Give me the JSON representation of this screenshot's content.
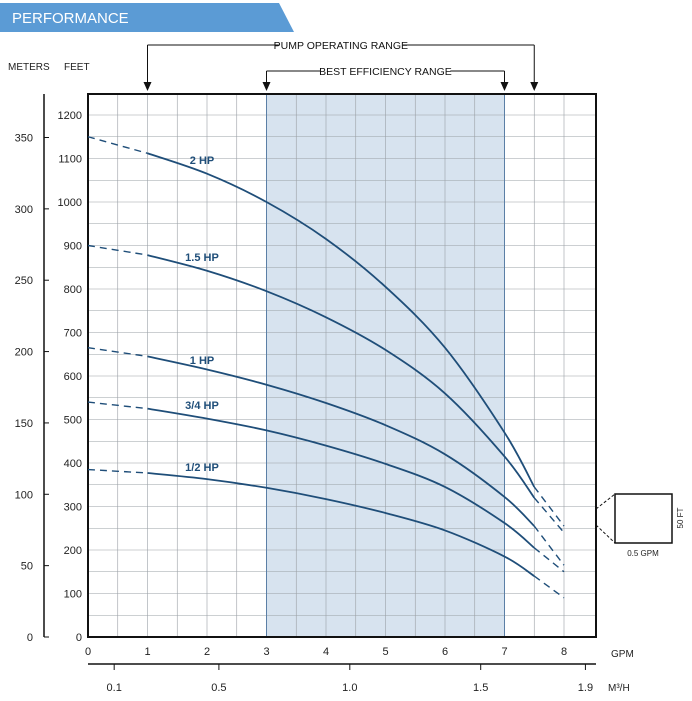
{
  "header": {
    "title": "PERFORMANCE"
  },
  "chart_data": {
    "type": "line",
    "xlabel": "GPM",
    "x2label": "M³/H",
    "ylabel_left": "METERS",
    "ylabel_right": "FEET",
    "xlim": [
      0,
      8.5
    ],
    "ylim_feet": [
      0,
      1200
    ],
    "ylim_meters": [
      0,
      365.76
    ],
    "x_ticks": [
      "0",
      "1",
      "2",
      "3",
      "4",
      "5",
      "6",
      "7",
      "8"
    ],
    "x2_ticks": [
      {
        "gpm": 0.44,
        "label": "0.1"
      },
      {
        "gpm": 2.2,
        "label": "0.5"
      },
      {
        "gpm": 4.4,
        "label": "1.0"
      },
      {
        "gpm": 6.6,
        "label": "1.5"
      },
      {
        "gpm": 8.36,
        "label": "1.9"
      }
    ],
    "y_feet_ticks": [
      "0",
      "100",
      "200",
      "300",
      "400",
      "500",
      "600",
      "700",
      "800",
      "900",
      "1000",
      "1100",
      "1200"
    ],
    "y_meter_ticks": [
      "0",
      "50",
      "100",
      "150",
      "200",
      "250",
      "300",
      "350"
    ],
    "grid": true,
    "ranges": {
      "operating": {
        "label": "PUMP OPERATING RANGE",
        "x": [
          1,
          7.5
        ]
      },
      "efficiency": {
        "label": "BEST EFFICIENCY RANGE",
        "x": [
          3,
          7
        ]
      }
    },
    "series": [
      {
        "name": "2 HP",
        "x": [
          0,
          1,
          2,
          3,
          4,
          5,
          6,
          7,
          7.5,
          8
        ],
        "y": [
          1150,
          1112,
          1065,
          1000,
          915,
          805,
          665,
          470,
          345,
          255
        ]
      },
      {
        "name": "1.5 HP",
        "x": [
          0,
          1,
          2,
          3,
          4,
          5,
          6,
          7,
          7.5,
          8
        ],
        "y": [
          900,
          878,
          842,
          795,
          735,
          660,
          560,
          415,
          320,
          240
        ]
      },
      {
        "name": "1 HP",
        "x": [
          0,
          1,
          2,
          3,
          4,
          5,
          6,
          7,
          7.5,
          8
        ],
        "y": [
          665,
          645,
          615,
          580,
          538,
          487,
          420,
          322,
          255,
          165
        ]
      },
      {
        "name": "3/4 HP",
        "x": [
          0,
          1,
          2,
          3,
          4,
          5,
          6,
          7,
          7.5,
          8
        ],
        "y": [
          540,
          525,
          502,
          475,
          440,
          398,
          345,
          262,
          205,
          150
        ]
      },
      {
        "name": "1/2 HP",
        "x": [
          0,
          1,
          2,
          3,
          4,
          5,
          6,
          7,
          7.5,
          8
        ],
        "y": [
          385,
          377,
          363,
          343,
          317,
          285,
          245,
          185,
          140,
          90
        ]
      }
    ],
    "scale_key": {
      "width_label": "0.5 GPM",
      "height_label": "50 FT"
    }
  }
}
